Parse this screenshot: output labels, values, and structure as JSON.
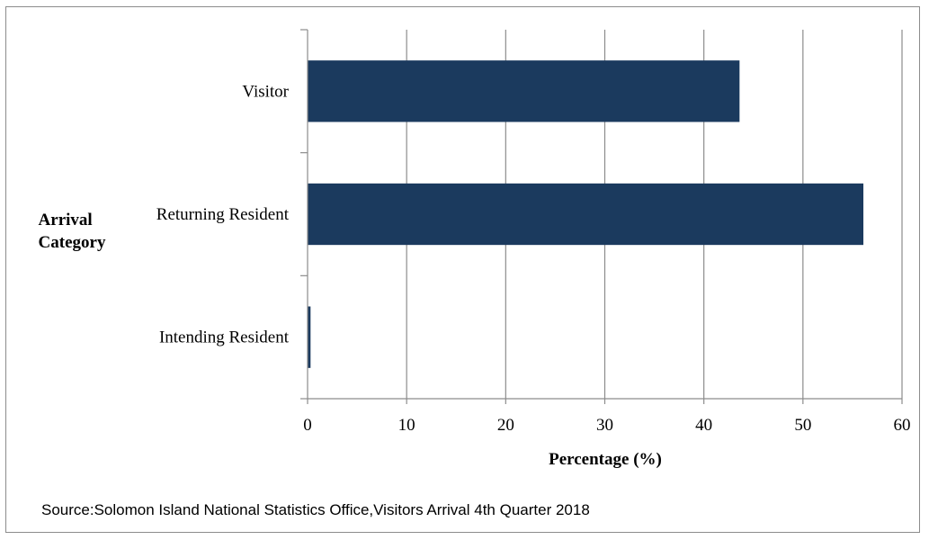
{
  "chart_data": {
    "type": "bar",
    "orientation": "horizontal",
    "categories": [
      "Visitor",
      "Returning Resident",
      "Intending Resident"
    ],
    "values": [
      43.6,
      56.1,
      0.3
    ],
    "xlabel": "Percentage (%)",
    "ylabel": "Arrival Category",
    "xlim": [
      0,
      60
    ],
    "xticks": [
      "0",
      "10",
      "20",
      "30",
      "40",
      "50",
      "60"
    ],
    "grid": "vertical",
    "bar_color": "#1b3a5e"
  },
  "source_note": "Source:Solomon Island National Statistics Office,Visitors Arrival 4th Quarter 2018"
}
